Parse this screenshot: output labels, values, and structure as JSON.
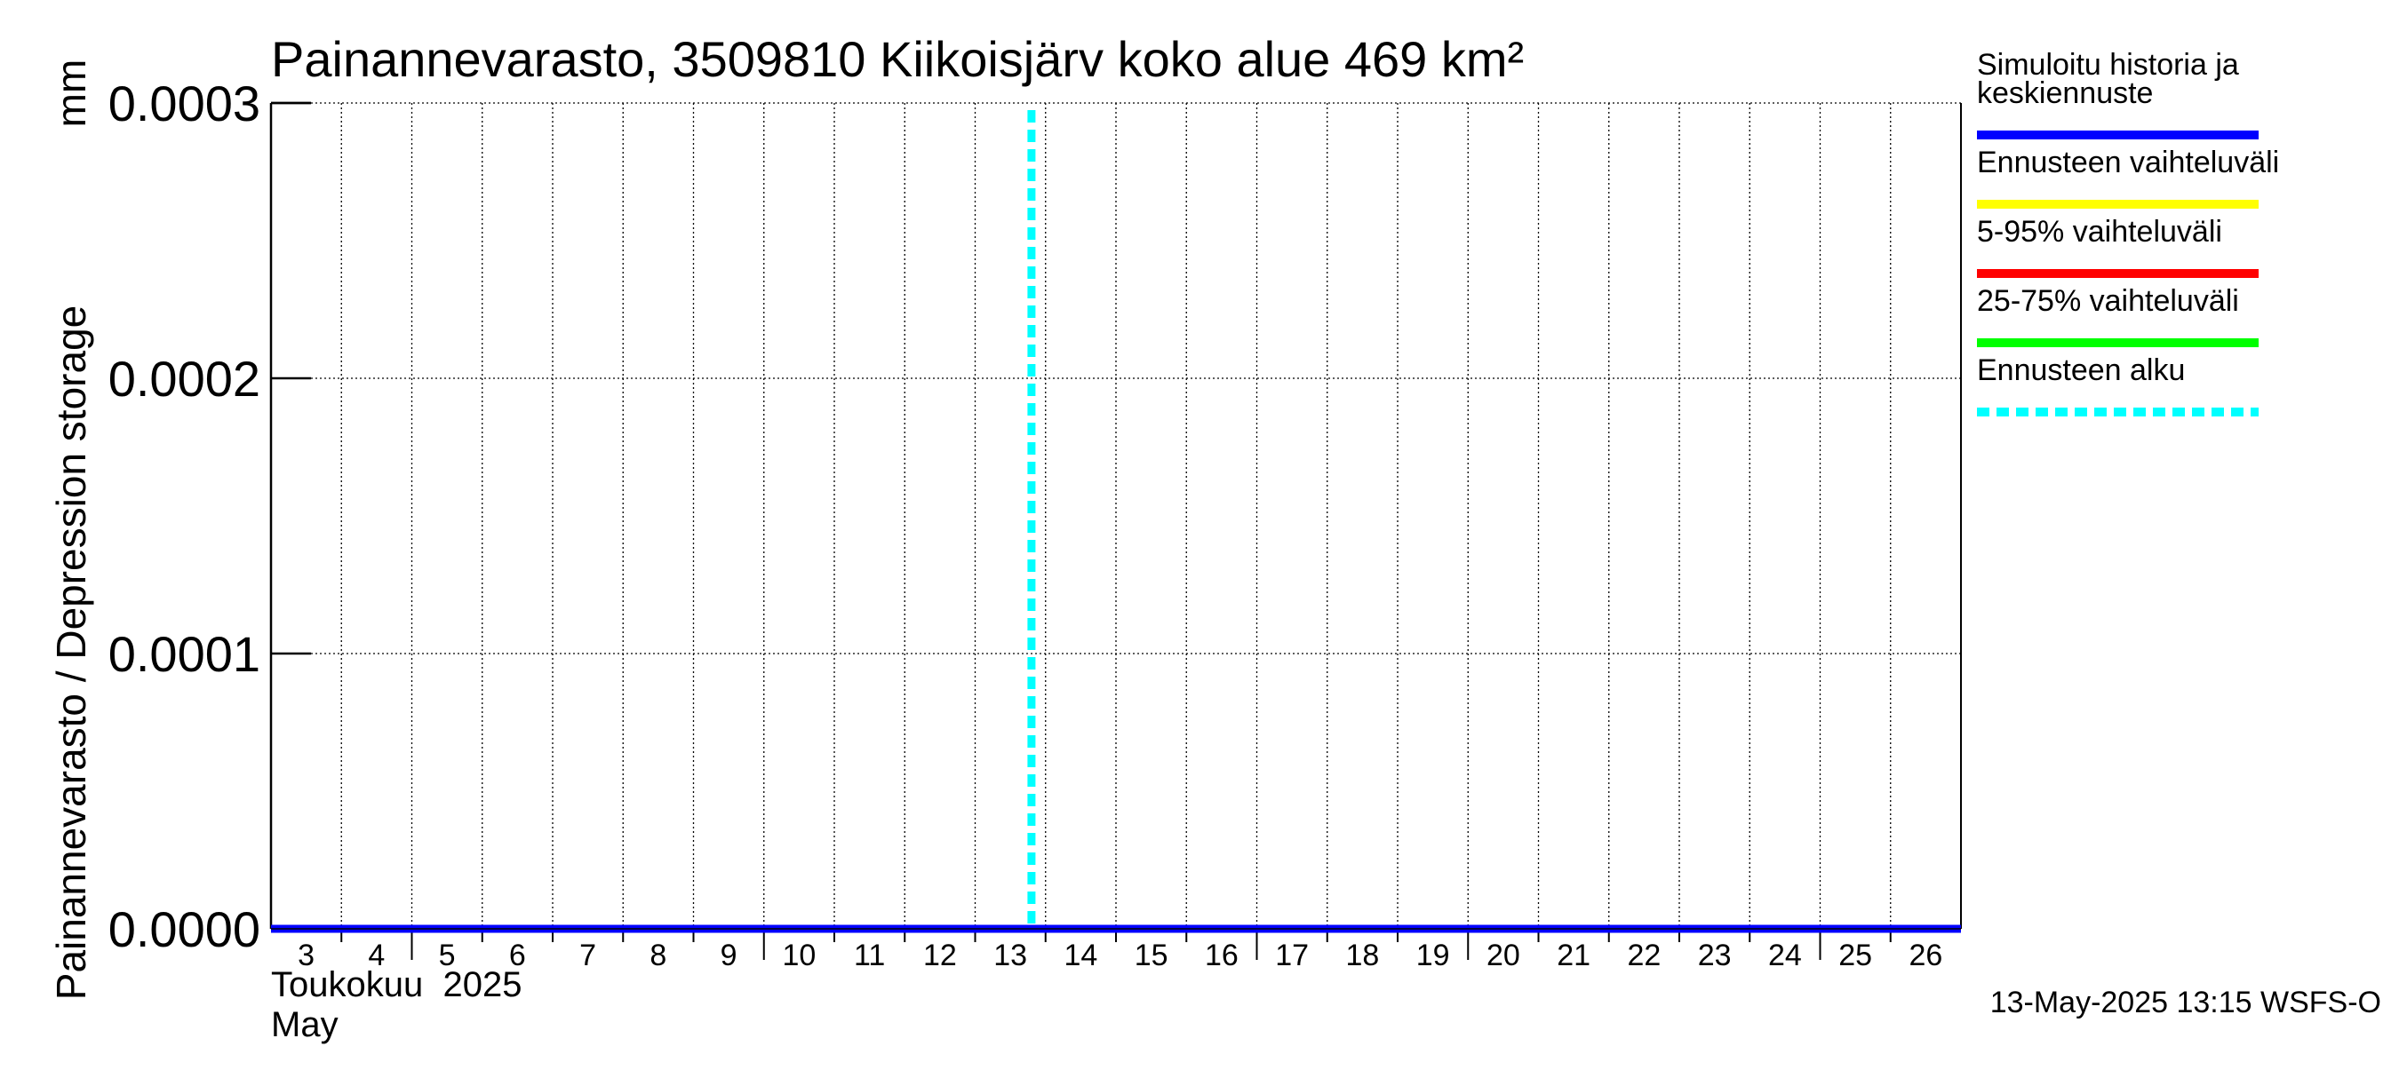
{
  "chart_data": {
    "type": "line",
    "title": "Painannevarasto, 3509810 Kiikoisjärv koko alue 469 km²",
    "ylabel": "Painannevarasto / Depression storage",
    "yunit": "mm",
    "ylim": [
      0.0,
      0.0003
    ],
    "yticks": [
      "0.0000",
      "0.0001",
      "0.0002",
      "0.0003"
    ],
    "xlim": [
      "2025-05-03",
      "2025-05-27"
    ],
    "xtick_labels": [
      "3",
      "4",
      "5",
      "6",
      "7",
      "8",
      "9",
      "10",
      "11",
      "12",
      "13",
      "14",
      "15",
      "16",
      "17",
      "18",
      "19",
      "20",
      "21",
      "22",
      "23",
      "24",
      "25",
      "26"
    ],
    "month_label_fi": "Toukokuu  2025",
    "month_label_en": "May",
    "grid": true,
    "forecast_start": "2025-05-13",
    "series": [
      {
        "name": "Simuloitu historia ja keskiennuste",
        "color": "#0000ff",
        "x": [
          "2025-05-03",
          "2025-05-27"
        ],
        "y": [
          0.0,
          0.0
        ]
      }
    ],
    "legend": {
      "placement": "right",
      "entries": [
        {
          "label_lines": [
            "Simuloitu historia ja",
            "keskiennuste"
          ],
          "color": "#0000ff",
          "style": "solid"
        },
        {
          "label_lines": [
            "Ennusteen vaihteluväli"
          ],
          "color": "#ffff00",
          "style": "solid"
        },
        {
          "label_lines": [
            "5-95% vaihteluväli"
          ],
          "color": "#ff0000",
          "style": "solid"
        },
        {
          "label_lines": [
            "25-75% vaihteluväli"
          ],
          "color": "#00ff00",
          "style": "solid"
        },
        {
          "label_lines": [
            "Ennusteen alku"
          ],
          "color": "#00ffff",
          "style": "dashed"
        }
      ]
    },
    "footer": "13-May-2025 13:15 WSFS-O"
  }
}
